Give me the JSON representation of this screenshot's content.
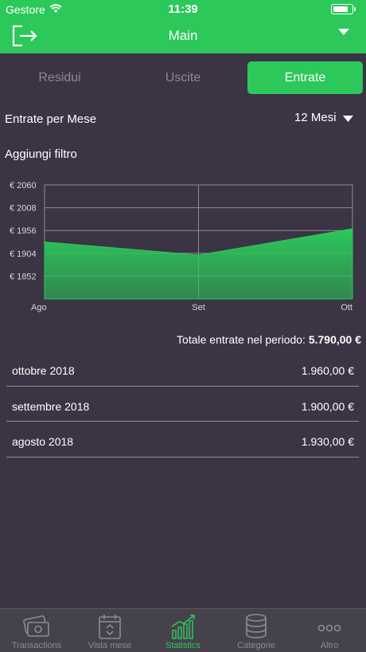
{
  "status_bar": {
    "carrier": "Gestore",
    "time": "11:39"
  },
  "nav": {
    "title": "Main",
    "exit_icon": "exit-icon",
    "dropdown_icon": "chevron-down-icon"
  },
  "segments": [
    "Residui",
    "Uscite",
    "Entrate"
  ],
  "selected_segment": "Entrate",
  "section_title": "Entrate per Mese",
  "period_select": "12 Mesi",
  "add_filter": "Aggiungi filtro",
  "chart_data": {
    "type": "area",
    "categories": [
      "Ago",
      "Set",
      "Ott"
    ],
    "values": [
      1930,
      1900,
      1960
    ],
    "y_ticks": [
      "€ 2060",
      "€ 2008",
      "€ 1956",
      "€ 1904",
      "€ 1852"
    ],
    "ylim": [
      1800,
      2060
    ],
    "grid": true,
    "color": "#2cc85a"
  },
  "total": {
    "label": "Totale entrate nel periodo:",
    "value": "5.790,00 €"
  },
  "list": [
    {
      "label": "ottobre 2018",
      "value": "1.960,00 €"
    },
    {
      "label": "settembre 2018",
      "value": "1.900,00 €"
    },
    {
      "label": "agosto 2018",
      "value": "1.930,00 €"
    }
  ],
  "tabbar": [
    {
      "label": "Transactions",
      "icon": "money-icon",
      "active": false
    },
    {
      "label": "Vista mese",
      "icon": "calendar-icon",
      "active": false
    },
    {
      "label": "Statistics",
      "icon": "bar-chart-icon",
      "active": true
    },
    {
      "label": "Categorie",
      "icon": "database-icon",
      "active": false
    },
    {
      "label": "Altro",
      "icon": "more-icon",
      "active": false
    }
  ],
  "colors": {
    "accent": "#2cc85a",
    "background": "#3a3444",
    "tabbar": "#46424c",
    "inactive_text": "#8e8a95"
  }
}
